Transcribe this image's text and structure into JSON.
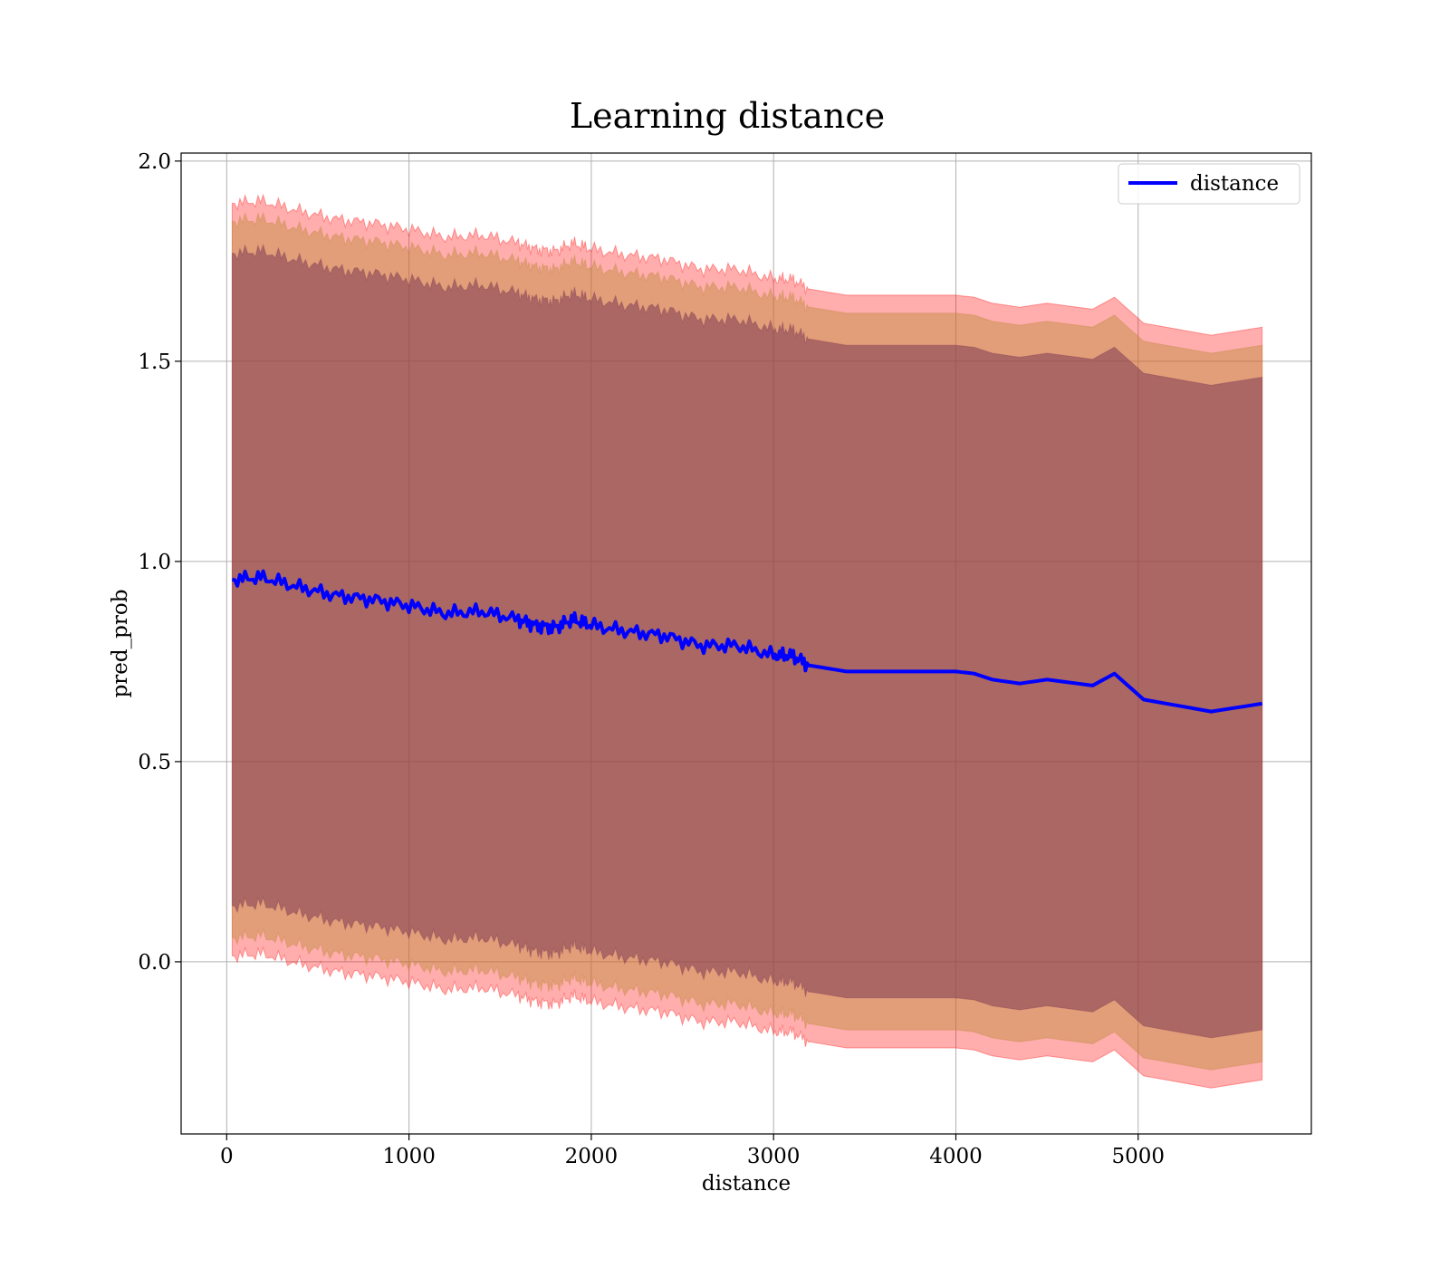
{
  "chart_data": {
    "type": "line",
    "title": "Learning distance",
    "xlabel": "distance",
    "ylabel": "pred_prob",
    "xlim": [
      -250,
      5950
    ],
    "ylim": [
      -0.43,
      2.02
    ],
    "xticks": [
      0,
      1000,
      2000,
      3000,
      4000,
      5000
    ],
    "yticks": [
      0.0,
      0.5,
      1.0,
      1.5,
      2.0
    ],
    "xtick_labels": [
      "0",
      "1000",
      "2000",
      "3000",
      "4000",
      "5000"
    ],
    "ytick_labels": [
      "0.0",
      "0.5",
      "1.0",
      "1.5",
      "2.0"
    ],
    "grid": true,
    "legend": {
      "position": "top-right",
      "entries": [
        "distance"
      ]
    },
    "colors": {
      "line": "#0000ff",
      "band_outer": "#ff0000",
      "band_middle": "#bf8a3a",
      "band_inner": "#7d3a52"
    },
    "x": [
      30,
      200,
      400,
      600,
      800,
      1000,
      1200,
      1400,
      1600,
      1700,
      1800,
      1900,
      2000,
      2200,
      2400,
      2600,
      2800,
      3000,
      3100,
      3200,
      3400,
      3600,
      3800,
      4000,
      4100,
      4200,
      4350,
      4500,
      4750,
      4870,
      5030,
      5400,
      5680
    ],
    "series": [
      {
        "name": "distance",
        "values": [
          0.955,
          0.96,
          0.935,
          0.915,
          0.905,
          0.89,
          0.87,
          0.875,
          0.855,
          0.84,
          0.835,
          0.855,
          0.84,
          0.825,
          0.815,
          0.79,
          0.79,
          0.765,
          0.765,
          0.74,
          0.725,
          0.725,
          0.725,
          0.725,
          0.72,
          0.705,
          0.695,
          0.705,
          0.69,
          0.72,
          0.655,
          0.625,
          0.645
        ]
      }
    ],
    "bands": [
      {
        "name": "band-outer",
        "offset": 0.94
      },
      {
        "name": "band-middle",
        "offset": 0.895
      },
      {
        "name": "band-inner",
        "offset": 0.815
      }
    ]
  }
}
